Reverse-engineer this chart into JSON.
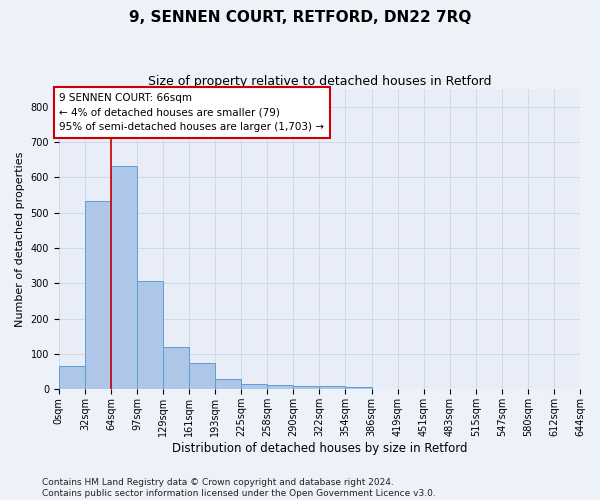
{
  "title": "9, SENNEN COURT, RETFORD, DN22 7RQ",
  "subtitle": "Size of property relative to detached houses in Retford",
  "xlabel": "Distribution of detached houses by size in Retford",
  "ylabel": "Number of detached properties",
  "bar_values": [
    65,
    533,
    632,
    308,
    120,
    75,
    28,
    15,
    13,
    10,
    10,
    7,
    0,
    0,
    0,
    0,
    0,
    0,
    0,
    0
  ],
  "bar_color": "#aec6e8",
  "bar_edge_color": "#5a9fd4",
  "bin_labels": [
    "0sqm",
    "32sqm",
    "64sqm",
    "97sqm",
    "129sqm",
    "161sqm",
    "193sqm",
    "225sqm",
    "258sqm",
    "290sqm",
    "322sqm",
    "354sqm",
    "386sqm",
    "419sqm",
    "451sqm",
    "483sqm",
    "515sqm",
    "547sqm",
    "580sqm",
    "612sqm",
    "644sqm"
  ],
  "n_bars": 20,
  "ylim": [
    0,
    850
  ],
  "yticks": [
    0,
    100,
    200,
    300,
    400,
    500,
    600,
    700,
    800
  ],
  "property_line_x": 2.0,
  "property_line_color": "#cc0000",
  "annotation_text": "9 SENNEN COURT: 66sqm\n← 4% of detached houses are smaller (79)\n95% of semi-detached houses are larger (1,703) →",
  "annotation_box_facecolor": "#ffffff",
  "annotation_box_edgecolor": "#cc0000",
  "grid_color": "#ccd6e8",
  "ax_facecolor": "#e8edf8",
  "fig_facecolor": "#edf1f8",
  "footer_text": "Contains HM Land Registry data © Crown copyright and database right 2024.\nContains public sector information licensed under the Open Government Licence v3.0.",
  "title_fontsize": 11,
  "subtitle_fontsize": 9,
  "xlabel_fontsize": 8.5,
  "ylabel_fontsize": 8,
  "tick_fontsize": 7,
  "annotation_fontsize": 7.5,
  "footer_fontsize": 6.5
}
